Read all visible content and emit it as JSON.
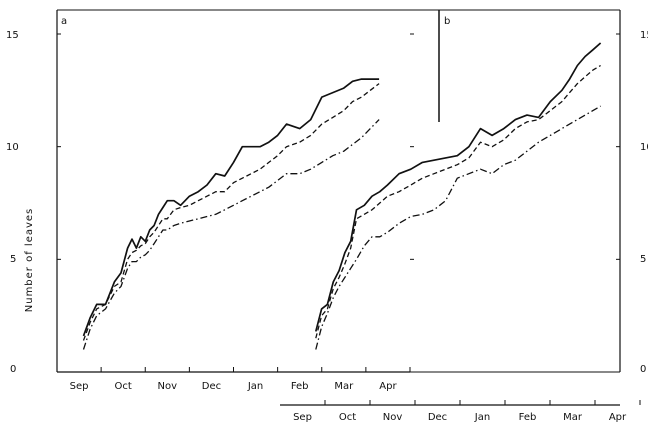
{
  "chart_data": {
    "type": "line",
    "ylabel": "Number of leaves",
    "ylim": [
      0,
      15
    ],
    "yticks": [
      0,
      5,
      10,
      15
    ],
    "panels": [
      {
        "label": "a",
        "months": [
          "Sep",
          "Oct",
          "Nov",
          "Dec",
          "Jan",
          "Feb",
          "Mar",
          "Apr"
        ],
        "xlim": [
          0,
          16
        ],
        "series": [
          {
            "style": "solid",
            "x": [
              1.2,
              1.5,
              1.8,
              2.2,
              2.6,
              2.9,
              3.2,
              3.4,
              3.6,
              3.8,
              4.0,
              4.2,
              4.4,
              4.6,
              4.8,
              5.0,
              5.3,
              5.6,
              6.0,
              6.4,
              6.8,
              7.2,
              7.6,
              8.0,
              8.4,
              8.8,
              9.2,
              9.6,
              10.0,
              10.4,
              11.0,
              11.5,
              12.0,
              12.5,
              13.0,
              13.4,
              13.8,
              14.2,
              14.6
            ],
            "y": [
              1.6,
              2.4,
              3.0,
              3.0,
              4.0,
              4.4,
              5.5,
              5.9,
              5.5,
              6.0,
              5.8,
              6.3,
              6.5,
              7.0,
              7.3,
              7.6,
              7.6,
              7.4,
              7.8,
              8.0,
              8.3,
              8.8,
              8.7,
              9.3,
              10.0,
              10.0,
              10.0,
              10.2,
              10.5,
              11.0,
              10.8,
              11.2,
              12.2,
              12.4,
              12.6,
              12.9,
              13.0,
              13.0,
              13.0
            ]
          },
          {
            "style": "dashed",
            "x": [
              1.2,
              1.5,
              1.8,
              2.2,
              2.6,
              2.9,
              3.2,
              3.4,
              3.6,
              3.8,
              4.0,
              4.2,
              4.4,
              4.6,
              4.8,
              5.0,
              5.3,
              5.6,
              6.0,
              6.4,
              6.8,
              7.2,
              7.6,
              8.0,
              8.4,
              8.8,
              9.2,
              9.6,
              10.0,
              10.4,
              11.0,
              11.5,
              12.0,
              12.5,
              13.0,
              13.4,
              13.8,
              14.2,
              14.6
            ],
            "y": [
              1.4,
              2.2,
              2.8,
              3.0,
              3.8,
              4.0,
              5.0,
              5.3,
              5.4,
              5.6,
              5.7,
              6.0,
              6.2,
              6.5,
              6.8,
              6.8,
              7.2,
              7.3,
              7.4,
              7.6,
              7.8,
              8.0,
              8.0,
              8.4,
              8.6,
              8.8,
              9.0,
              9.3,
              9.6,
              10.0,
              10.2,
              10.5,
              11.0,
              11.3,
              11.6,
              12.0,
              12.2,
              12.5,
              12.8
            ]
          },
          {
            "style": "dashdot",
            "x": [
              1.2,
              1.5,
              1.8,
              2.2,
              2.6,
              2.9,
              3.2,
              3.4,
              3.6,
              3.8,
              4.0,
              4.2,
              4.4,
              4.6,
              4.8,
              5.0,
              5.3,
              5.6,
              6.0,
              6.4,
              6.8,
              7.2,
              7.6,
              8.0,
              8.4,
              8.8,
              9.2,
              9.6,
              10.0,
              10.4,
              11.0,
              11.5,
              12.0,
              12.5,
              13.0,
              13.4,
              13.8,
              14.2,
              14.6
            ],
            "y": [
              1.0,
              1.9,
              2.5,
              2.8,
              3.5,
              3.8,
              4.6,
              4.9,
              4.9,
              5.1,
              5.2,
              5.4,
              5.7,
              6.0,
              6.3,
              6.3,
              6.5,
              6.6,
              6.7,
              6.8,
              6.9,
              7.0,
              7.2,
              7.4,
              7.6,
              7.8,
              8.0,
              8.2,
              8.5,
              8.8,
              8.8,
              9.0,
              9.3,
              9.6,
              9.8,
              10.1,
              10.4,
              10.8,
              11.2
            ]
          }
        ]
      },
      {
        "label": "b",
        "months": [
          "Sep",
          "Oct",
          "Nov",
          "Dec",
          "Jan",
          "Feb",
          "Mar",
          "Apr"
        ],
        "xlim": [
          0,
          16
        ],
        "series": [
          {
            "style": "solid",
            "x": [
              0.3,
              0.6,
              0.9,
              1.2,
              1.5,
              1.8,
              2.1,
              2.4,
              2.8,
              3.2,
              3.6,
              4.0,
              4.6,
              5.2,
              5.8,
              6.4,
              7.0,
              7.6,
              8.2,
              8.8,
              9.4,
              10.0,
              10.6,
              11.2,
              11.8,
              12.4,
              13.0,
              13.4,
              13.8,
              14.2,
              14.6,
              15.0
            ],
            "y": [
              1.8,
              2.8,
              3.0,
              4.0,
              4.5,
              5.3,
              5.8,
              7.2,
              7.4,
              7.8,
              8.0,
              8.3,
              8.8,
              9.0,
              9.3,
              9.4,
              9.5,
              9.6,
              10.0,
              10.8,
              10.5,
              10.8,
              11.2,
              11.4,
              11.3,
              12.0,
              12.5,
              13.0,
              13.6,
              14.0,
              14.3,
              14.6
            ]
          },
          {
            "style": "dashed",
            "x": [
              0.3,
              0.6,
              0.9,
              1.2,
              1.5,
              1.8,
              2.1,
              2.4,
              2.8,
              3.2,
              3.6,
              4.0,
              4.6,
              5.2,
              5.8,
              6.4,
              7.0,
              7.6,
              8.2,
              8.8,
              9.4,
              10.0,
              10.6,
              11.2,
              11.8,
              12.4,
              13.0,
              13.4,
              13.8,
              14.2,
              14.6,
              15.0
            ],
            "y": [
              1.5,
              2.5,
              2.8,
              3.7,
              4.2,
              4.8,
              5.5,
              6.8,
              7.0,
              7.2,
              7.5,
              7.8,
              8.0,
              8.3,
              8.6,
              8.8,
              9.0,
              9.2,
              9.5,
              10.2,
              10.0,
              10.3,
              10.8,
              11.1,
              11.2,
              11.6,
              12.0,
              12.4,
              12.8,
              13.1,
              13.4,
              13.6
            ]
          },
          {
            "style": "dashdot",
            "x": [
              0.3,
              0.6,
              0.9,
              1.2,
              1.5,
              1.8,
              2.1,
              2.4,
              2.8,
              3.2,
              3.6,
              4.0,
              4.6,
              5.2,
              5.8,
              6.4,
              7.0,
              7.6,
              8.2,
              8.8,
              9.4,
              10.0,
              10.6,
              11.2,
              11.8,
              12.4,
              13.0,
              13.4,
              13.8,
              14.2,
              14.6,
              15.0
            ],
            "y": [
              1.0,
              2.0,
              2.6,
              3.3,
              3.8,
              4.2,
              4.6,
              5.0,
              5.6,
              6.0,
              6.0,
              6.2,
              6.6,
              6.9,
              7.0,
              7.2,
              7.6,
              8.6,
              8.8,
              9.0,
              8.8,
              9.2,
              9.4,
              9.8,
              10.2,
              10.5,
              10.8,
              11.0,
              11.2,
              11.4,
              11.6,
              11.8
            ]
          }
        ]
      }
    ],
    "extra_axis_months": [
      "Sep",
      "Oct",
      "Nov",
      "Dec",
      "Jan",
      "Feb",
      "Mar",
      "Apr"
    ]
  }
}
